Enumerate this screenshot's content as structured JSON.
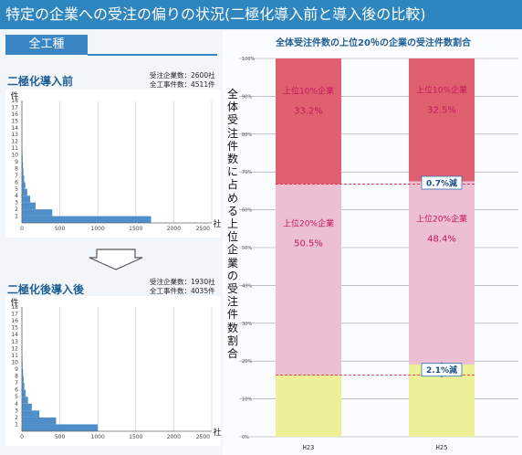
{
  "title": "特定の企業への受注の偏りの状況(二極化導入前と導入後の比較)",
  "tag": "全工種",
  "before": {
    "heading": "二極化導入前",
    "meta": [
      "受注企業数：2600社",
      "全工事件数：4511件"
    ],
    "y_unit": "件",
    "x_unit": "社"
  },
  "after": {
    "heading": "二極化後導入後",
    "meta": [
      "受注企業数：1930社",
      "全工事件数：4035件"
    ],
    "y_unit": "件",
    "x_unit": "社"
  },
  "chart_data": [
    {
      "type": "bar",
      "title": "二極化導入前",
      "x_ticks": [
        "0",
        "500",
        "1000",
        "1500",
        "2000",
        "2500"
      ],
      "y_ticks": [
        "1",
        "2",
        "3",
        "4",
        "5",
        "6",
        "7",
        "8",
        "9",
        "10",
        "11",
        "12",
        "13",
        "14",
        "15",
        "16",
        "17",
        "18"
      ],
      "xlim": [
        0,
        2500
      ],
      "ylim": [
        0,
        18
      ],
      "steps": [
        {
          "y": 1,
          "x_end": 1700
        },
        {
          "y": 2,
          "x_end": 400
        },
        {
          "y": 3,
          "x_end": 180
        },
        {
          "y": 4,
          "x_end": 110
        },
        {
          "y": 5,
          "x_end": 70
        },
        {
          "y": 6,
          "x_end": 45
        },
        {
          "y": 7,
          "x_end": 30
        },
        {
          "y": 8,
          "x_end": 20
        },
        {
          "y": 9,
          "x_end": 14
        },
        {
          "y": 10,
          "x_end": 10
        },
        {
          "y": 11,
          "x_end": 7
        },
        {
          "y": 12,
          "x_end": 5
        },
        {
          "y": 13,
          "x_end": 4
        },
        {
          "y": 14,
          "x_end": 3
        },
        {
          "y": 15,
          "x_end": 2
        },
        {
          "y": 16,
          "x_end": 2
        },
        {
          "y": 17,
          "x_end": 1
        }
      ]
    },
    {
      "type": "bar",
      "title": "二極化後導入後",
      "x_ticks": [
        "0",
        "500",
        "1000",
        "1500",
        "2000",
        "2500"
      ],
      "y_ticks": [
        "1",
        "2",
        "3",
        "4",
        "5",
        "6",
        "7",
        "8",
        "9",
        "10",
        "11",
        "12",
        "13",
        "14",
        "15",
        "16",
        "17",
        "18"
      ],
      "xlim": [
        0,
        2500
      ],
      "ylim": [
        0,
        18
      ],
      "steps": [
        {
          "y": 1,
          "x_end": 1000
        },
        {
          "y": 2,
          "x_end": 450
        },
        {
          "y": 3,
          "x_end": 230
        },
        {
          "y": 4,
          "x_end": 130
        },
        {
          "y": 5,
          "x_end": 80
        },
        {
          "y": 6,
          "x_end": 50
        },
        {
          "y": 7,
          "x_end": 32
        },
        {
          "y": 8,
          "x_end": 22
        },
        {
          "y": 9,
          "x_end": 15
        },
        {
          "y": 10,
          "x_end": 10
        },
        {
          "y": 11,
          "x_end": 7
        },
        {
          "y": 12,
          "x_end": 5
        },
        {
          "y": 13,
          "x_end": 4
        },
        {
          "y": 14,
          "x_end": 3
        },
        {
          "y": 15,
          "x_end": 2
        },
        {
          "y": 16,
          "x_end": 1
        }
      ]
    },
    {
      "type": "bar",
      "stacked": true,
      "title": "全体受注件数の上位20％の企業の受注件数割合",
      "ylabel": "全体受注件数に占める上位企業の受注件数割合",
      "categories": [
        "H23",
        "H25"
      ],
      "y_ticks": [
        "0%",
        "10%",
        "20%",
        "30%",
        "40%",
        "50%",
        "60%",
        "70%",
        "80%",
        "90%",
        "100%"
      ],
      "ylim": [
        0,
        100
      ],
      "series": [
        {
          "name": "上位10%企業",
          "values": [
            33.2,
            32.5
          ],
          "labels": [
            "33.2%",
            "32.5%"
          ],
          "color": "#e06070"
        },
        {
          "name": "上位20%企業",
          "values": [
            50.5,
            48.4
          ],
          "labels": [
            "50.5%",
            "48.4%"
          ],
          "color": "#edbfd2"
        },
        {
          "values": [
            16.3,
            19.1
          ],
          "color": "#eef098"
        }
      ],
      "annotations": [
        "0.7%減",
        "2.1%減"
      ]
    }
  ]
}
